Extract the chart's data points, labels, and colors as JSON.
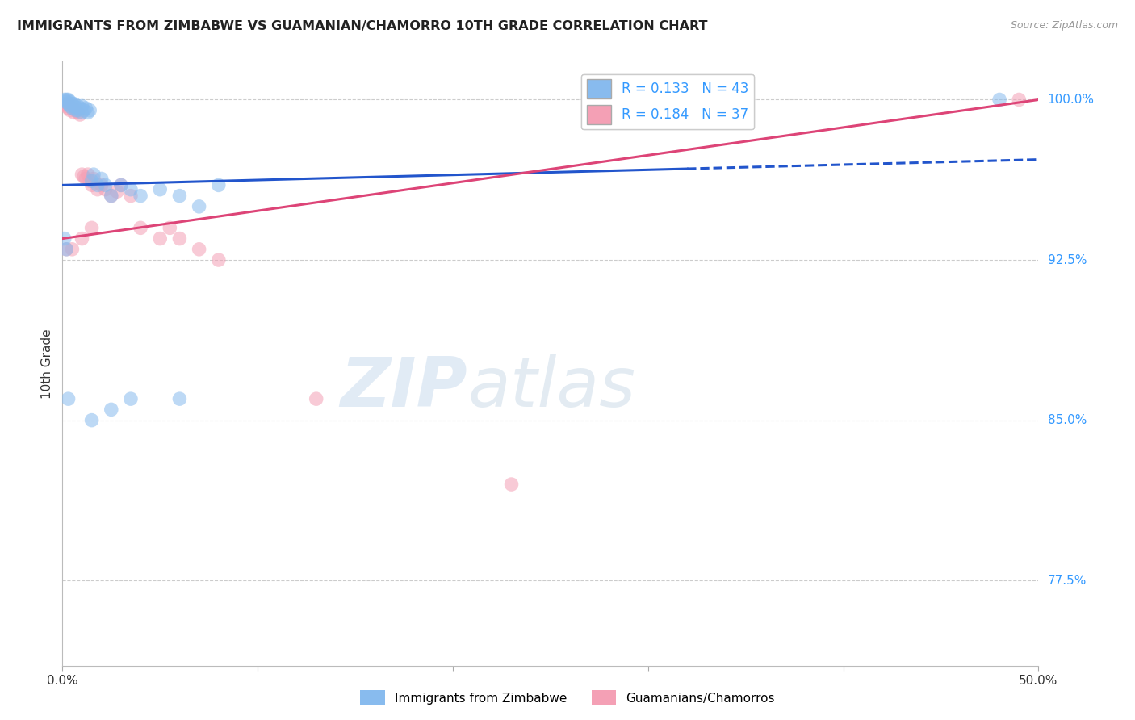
{
  "title": "IMMIGRANTS FROM ZIMBABWE VS GUAMANIAN/CHAMORRO 10TH GRADE CORRELATION CHART",
  "source": "Source: ZipAtlas.com",
  "ylabel": "10th Grade",
  "xlim": [
    0.0,
    0.5
  ],
  "ylim": [
    0.735,
    1.018
  ],
  "xticks": [
    0.0,
    0.1,
    0.2,
    0.3,
    0.4,
    0.5
  ],
  "xticklabels": [
    "0.0%",
    "",
    "",
    "",
    "",
    "50.0%"
  ],
  "yticks": [
    0.775,
    0.85,
    0.925,
    1.0
  ],
  "yticklabels": [
    "77.5%",
    "85.0%",
    "92.5%",
    "100.0%"
  ],
  "ytick_color": "#3399ff",
  "blue_color": "#88bbee",
  "pink_color": "#f4a0b5",
  "blue_line_color": "#2255cc",
  "pink_line_color": "#dd4477",
  "R_blue": 0.133,
  "N_blue": 43,
  "R_pink": 0.184,
  "N_pink": 37,
  "grid_color": "#cccccc",
  "background_color": "#ffffff",
  "watermark_zip": "ZIP",
  "watermark_atlas": "atlas",
  "blue_scatter_x": [
    0.001,
    0.002,
    0.002,
    0.003,
    0.003,
    0.004,
    0.004,
    0.005,
    0.005,
    0.006,
    0.006,
    0.007,
    0.007,
    0.008,
    0.008,
    0.009,
    0.01,
    0.01,
    0.011,
    0.012,
    0.013,
    0.014,
    0.015,
    0.016,
    0.018,
    0.02,
    0.022,
    0.025,
    0.03,
    0.035,
    0.04,
    0.05,
    0.06,
    0.07,
    0.08,
    0.001,
    0.002,
    0.003,
    0.015,
    0.025,
    0.035,
    0.06,
    0.48
  ],
  "blue_scatter_y": [
    1.0,
    1.0,
    0.999,
    1.0,
    0.998,
    0.999,
    0.997,
    0.998,
    0.996,
    0.997,
    0.998,
    0.996,
    0.995,
    0.997,
    0.995,
    0.996,
    0.997,
    0.994,
    0.995,
    0.996,
    0.994,
    0.995,
    0.962,
    0.965,
    0.96,
    0.963,
    0.96,
    0.955,
    0.96,
    0.958,
    0.955,
    0.958,
    0.955,
    0.95,
    0.96,
    0.935,
    0.93,
    0.86,
    0.85,
    0.855,
    0.86,
    0.86,
    1.0
  ],
  "pink_scatter_x": [
    0.001,
    0.002,
    0.003,
    0.003,
    0.004,
    0.005,
    0.006,
    0.007,
    0.008,
    0.009,
    0.01,
    0.011,
    0.012,
    0.013,
    0.014,
    0.015,
    0.016,
    0.018,
    0.02,
    0.022,
    0.025,
    0.028,
    0.03,
    0.035,
    0.04,
    0.05,
    0.055,
    0.06,
    0.07,
    0.08,
    0.002,
    0.005,
    0.01,
    0.015,
    0.13,
    0.23,
    0.49
  ],
  "pink_scatter_y": [
    0.998,
    0.997,
    0.998,
    0.996,
    0.995,
    0.997,
    0.994,
    0.995,
    0.994,
    0.993,
    0.965,
    0.964,
    0.963,
    0.965,
    0.962,
    0.96,
    0.963,
    0.958,
    0.96,
    0.958,
    0.955,
    0.957,
    0.96,
    0.955,
    0.94,
    0.935,
    0.94,
    0.935,
    0.93,
    0.925,
    0.93,
    0.93,
    0.935,
    0.94,
    0.86,
    0.82,
    1.0
  ],
  "blue_line_x0": 0.0,
  "blue_line_x1": 0.5,
  "blue_line_y0": 0.96,
  "blue_line_y1": 0.972,
  "pink_line_x0": 0.0,
  "pink_line_x1": 0.5,
  "pink_line_y0": 0.935,
  "pink_line_y1": 1.0
}
